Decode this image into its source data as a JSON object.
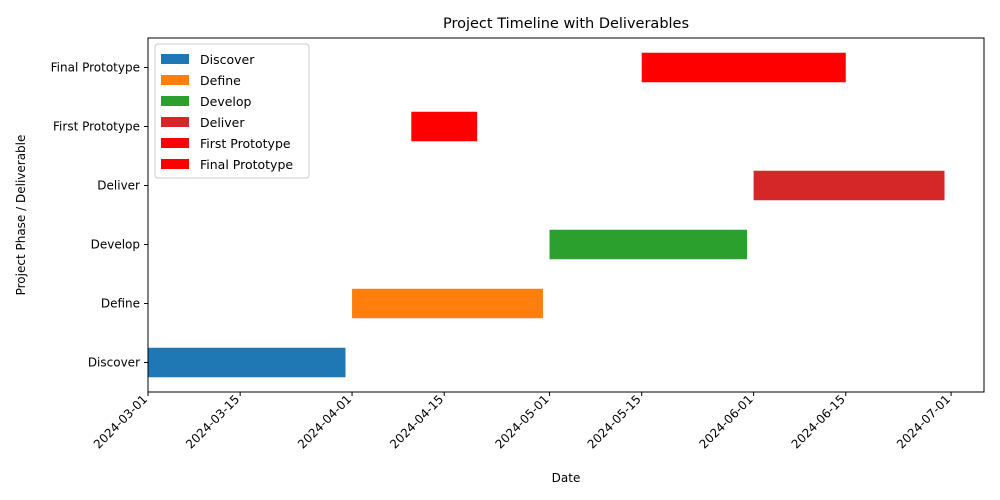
{
  "chart_data": {
    "type": "bar",
    "orientation": "horizontal",
    "title": "Project Timeline with Deliverables",
    "xlabel": "Date",
    "ylabel": "Project Phase / Deliverable",
    "categories": [
      "Discover",
      "Define",
      "Develop",
      "Deliver",
      "First Prototype",
      "Final Prototype"
    ],
    "xlim": [
      "2024-03-01",
      "2024-07-06"
    ],
    "xticks": [
      "2024-03-01",
      "2024-03-15",
      "2024-04-01",
      "2024-04-15",
      "2024-05-01",
      "2024-05-15",
      "2024-06-01",
      "2024-06-15",
      "2024-07-01"
    ],
    "grid": false,
    "legend_position": "top-left",
    "series": [
      {
        "name": "Discover",
        "category": "Discover",
        "start": "2024-03-01",
        "end": "2024-03-31",
        "color": "#1f77b4"
      },
      {
        "name": "Define",
        "category": "Define",
        "start": "2024-04-01",
        "end": "2024-04-30",
        "color": "#ff7f0e"
      },
      {
        "name": "Develop",
        "category": "Develop",
        "start": "2024-05-01",
        "end": "2024-05-31",
        "color": "#2ca02c"
      },
      {
        "name": "Deliver",
        "category": "Deliver",
        "start": "2024-06-01",
        "end": "2024-06-30",
        "color": "#d62728"
      },
      {
        "name": "First Prototype",
        "category": "First Prototype",
        "start": "2024-04-10",
        "end": "2024-04-20",
        "color": "#ff0000"
      },
      {
        "name": "Final Prototype",
        "category": "Final Prototype",
        "start": "2024-05-15",
        "end": "2024-06-15",
        "color": "#ff0000"
      }
    ]
  }
}
